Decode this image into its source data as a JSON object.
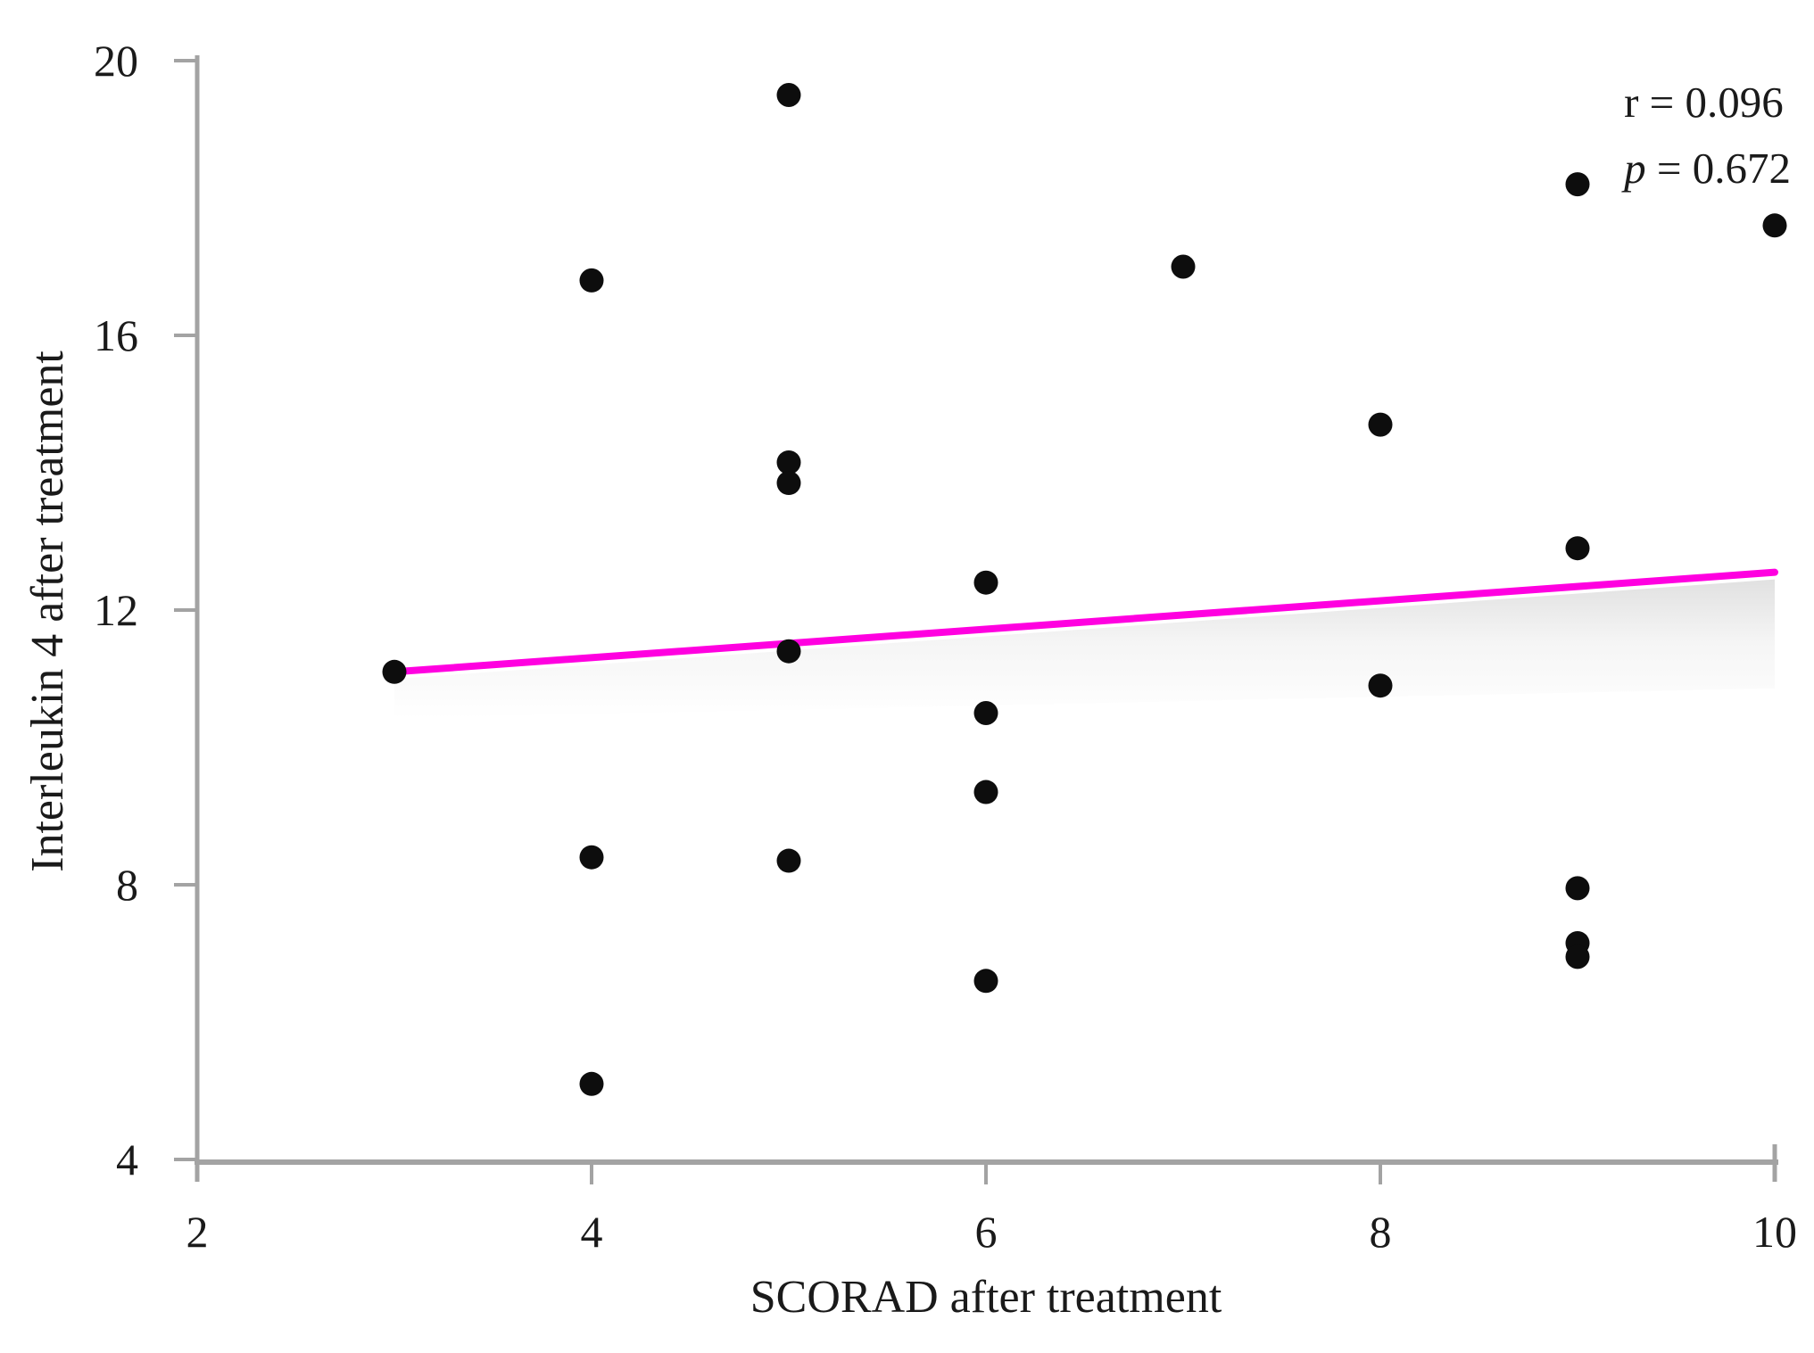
{
  "chart_data": {
    "type": "scatter",
    "title": "",
    "xlabel": "SCORAD after treatment",
    "ylabel": "Interleukin 4 after treatment",
    "xlim": [
      2,
      10
    ],
    "ylim": [
      4,
      20
    ],
    "x_ticks": [
      "2",
      "4",
      "6",
      "8",
      "10"
    ],
    "x_tick_values": [
      2,
      4,
      6,
      8,
      10
    ],
    "y_ticks": [
      "4",
      "8",
      "12",
      "16",
      "20"
    ],
    "y_tick_values": [
      4,
      8,
      12,
      16,
      20
    ],
    "grid": false,
    "legend": "none",
    "points": [
      [
        5,
        19.5
      ],
      [
        9,
        18.2
      ],
      [
        10,
        17.6
      ],
      [
        7,
        17.0
      ],
      [
        4,
        16.8
      ],
      [
        8,
        14.7
      ],
      [
        5,
        14.15
      ],
      [
        5,
        13.85
      ],
      [
        9,
        12.9
      ],
      [
        6,
        12.4
      ],
      [
        5,
        11.4
      ],
      [
        3,
        11.1
      ],
      [
        8,
        10.9
      ],
      [
        6,
        10.5
      ],
      [
        6,
        9.35
      ],
      [
        4,
        8.4
      ],
      [
        5,
        8.35
      ],
      [
        9,
        7.95
      ],
      [
        9,
        7.15
      ],
      [
        9,
        6.95
      ],
      [
        6,
        6.6
      ],
      [
        4,
        5.1
      ]
    ],
    "trend_line": {
      "x_start": 3,
      "y_start": 11.1,
      "x_end": 10,
      "y_end": 12.55
    },
    "annotation": {
      "r_label": "r = 0.096",
      "p_name": "p",
      "p_rest": " = 0.672"
    },
    "colors": {
      "point": "#0d0d0d",
      "trend": "#ff00e0",
      "axis": "#a3a3a3",
      "text": "#1a1a1a",
      "shadow": "#9a9a9a"
    }
  }
}
